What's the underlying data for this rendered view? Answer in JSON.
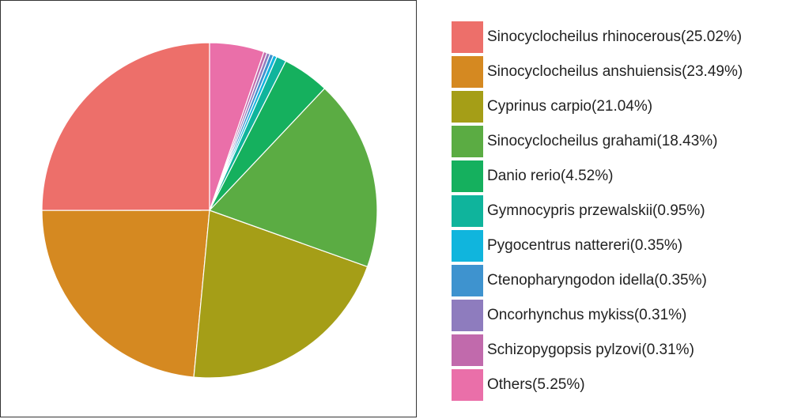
{
  "chart_data": {
    "type": "pie",
    "title": "",
    "start_angle_deg": 0,
    "direction": "counterclockwise",
    "slices": [
      {
        "label": "Sinocyclocheilus rhinocerous(25.02%)",
        "value": 25.02,
        "color": "#ED6F6A"
      },
      {
        "label": "Sinocyclocheilus anshuiensis(23.49%)",
        "value": 23.49,
        "color": "#D58921"
      },
      {
        "label": "Cyprinus carpio(21.04%)",
        "value": 21.04,
        "color": "#A59E17"
      },
      {
        "label": "Sinocyclocheilus grahami(18.43%)",
        "value": 18.43,
        "color": "#5BAC43"
      },
      {
        "label": "Danio rerio(4.52%)",
        "value": 4.52,
        "color": "#15B05E"
      },
      {
        "label": "Gymnocypris przewalskii(0.95%)",
        "value": 0.95,
        "color": "#0FB49C"
      },
      {
        "label": "Pygocentrus nattereri(0.35%)",
        "value": 0.35,
        "color": "#10B5DD"
      },
      {
        "label": "Ctenopharyngodon idella(0.35%)",
        "value": 0.35,
        "color": "#3E93CF"
      },
      {
        "label": "Oncorhynchus mykiss(0.31%)",
        "value": 0.31,
        "color": "#8E7CBE"
      },
      {
        "label": "Schizopygopsis pylzovi(0.31%)",
        "value": 0.31,
        "color": "#C16AAC"
      },
      {
        "label": "Others(5.25%)",
        "value": 5.25,
        "color": "#EA6FA9"
      }
    ],
    "legend": "right"
  }
}
